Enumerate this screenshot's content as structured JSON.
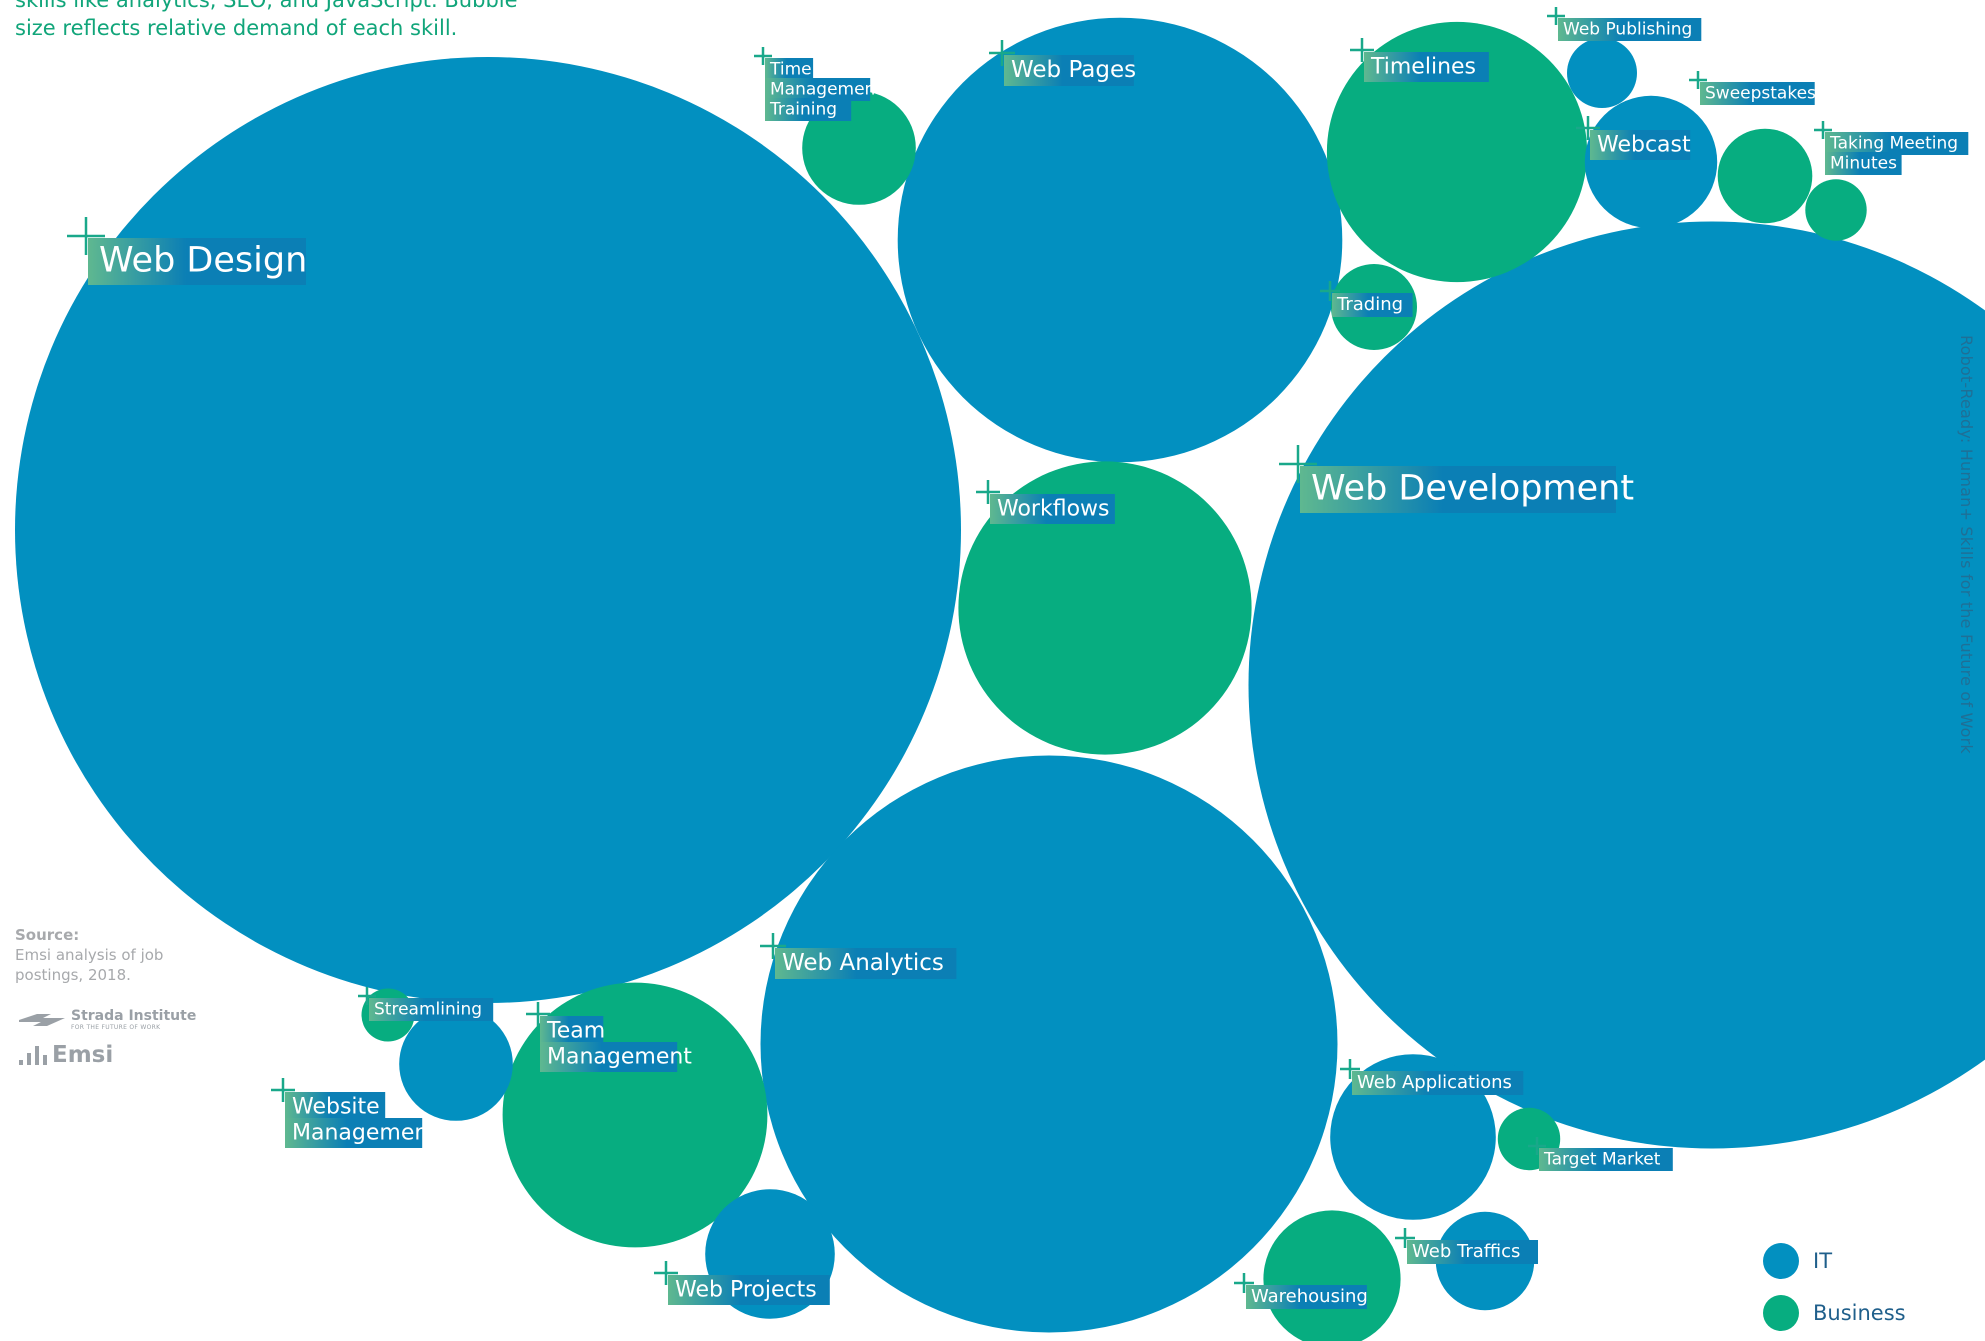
{
  "intro_text": "skills like analytics, SEO, and JavaScript. Bubble size reflects relative demand of each skill.",
  "side_title": "Robot-Ready: Human+ Skills for the Future of Work",
  "source": {
    "title": "Source:",
    "text": "Emsi analysis of job postings, 2018."
  },
  "logos": {
    "strada_name": "Strada Institute",
    "strada_tagline": "FOR THE FUTURE OF WORK",
    "emsi_name": "Emsi"
  },
  "colors": {
    "it": "#0290c0",
    "business": "#07ad80",
    "label_fill": "#0b7fb5",
    "label_fade": "#5fb890",
    "marker": "#19a88a"
  },
  "chart_data": {
    "type": "bubble",
    "title": "",
    "legend": {
      "placement": "bottom-right",
      "items": [
        {
          "key": "it",
          "label": "IT",
          "color": "#0290c0"
        },
        {
          "key": "business",
          "label": "Business",
          "color": "#07ad80"
        }
      ]
    },
    "bubbles": [
      {
        "label": "Web Design",
        "category": "it",
        "relative_size": 1.0
      },
      {
        "label": "Web Development",
        "category": "it",
        "relative_size": 0.98
      },
      {
        "label": "Web Analytics",
        "category": "it",
        "relative_size": 0.61
      },
      {
        "label": "Web Pages",
        "category": "it",
        "relative_size": 0.47
      },
      {
        "label": "Workflows",
        "category": "business",
        "relative_size": 0.31
      },
      {
        "label": "Timelines",
        "category": "business",
        "relative_size": 0.275
      },
      {
        "label": "Team Management",
        "category": "business",
        "relative_size": 0.28
      },
      {
        "label": "Web Applications",
        "category": "it",
        "relative_size": 0.175
      },
      {
        "label": "Webcast",
        "category": "it",
        "relative_size": 0.14
      },
      {
        "label": "Web Projects",
        "category": "it",
        "relative_size": 0.137
      },
      {
        "label": "Warehousing",
        "category": "business",
        "relative_size": 0.145
      },
      {
        "label": "Website Management",
        "category": "it",
        "relative_size": 0.12
      },
      {
        "label": "Time Management Training",
        "category": "business",
        "relative_size": 0.12
      },
      {
        "label": "Web Traffics",
        "category": "it",
        "relative_size": 0.104
      },
      {
        "label": "Sweepstakes",
        "category": "business",
        "relative_size": 0.1
      },
      {
        "label": "Trading",
        "category": "business",
        "relative_size": 0.091
      },
      {
        "label": "Web Publishing",
        "category": "it",
        "relative_size": 0.074
      },
      {
        "label": "Target Market",
        "category": "business",
        "relative_size": 0.066
      },
      {
        "label": "Taking Meeting Minutes",
        "category": "business",
        "relative_size": 0.065
      },
      {
        "label": "Streamlining",
        "category": "business",
        "relative_size": 0.056
      }
    ]
  }
}
